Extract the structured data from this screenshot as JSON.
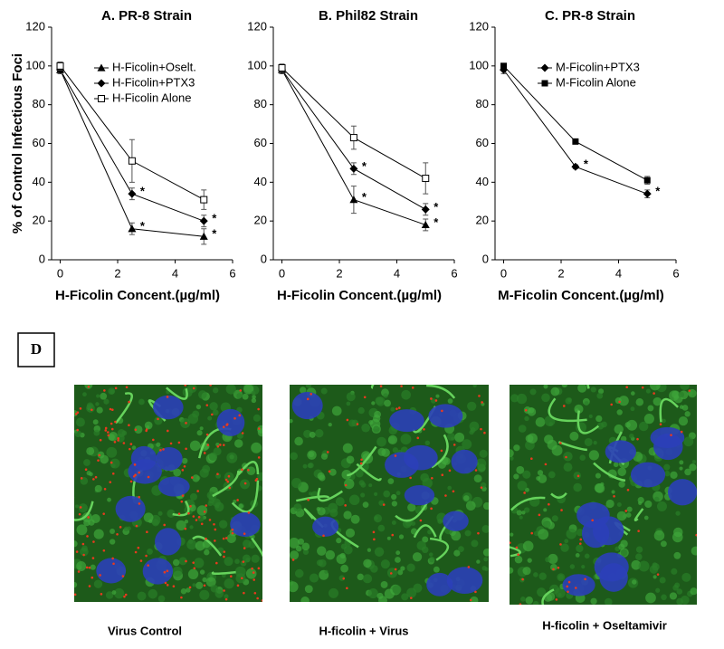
{
  "chart_data": [
    {
      "type": "line",
      "title": "A. PR-8 Strain",
      "xlabel": "H-Ficolin Concent.(µg/ml)",
      "ylabel": "% of Control Infectious Foci",
      "x": [
        0,
        2.5,
        5
      ],
      "xlim": [
        -0.3,
        6
      ],
      "xticks": [
        0,
        2,
        4,
        6
      ],
      "ylim": [
        0,
        120
      ],
      "yticks": [
        0,
        20,
        40,
        60,
        80,
        100,
        120
      ],
      "legend": "upper right",
      "series": [
        {
          "name": "H-Ficolin+Oselt.",
          "color": "#000000",
          "marker": "triangle",
          "values": [
            98,
            16,
            12
          ],
          "errors": [
            2,
            3,
            4
          ],
          "flags": [
            null,
            "*",
            "*"
          ]
        },
        {
          "name": "H-Ficolin+PTX3",
          "color": "#000000",
          "marker": "diamond",
          "values": [
            98,
            34,
            20
          ],
          "errors": [
            2,
            3,
            3
          ],
          "flags": [
            null,
            "*",
            "*"
          ]
        },
        {
          "name": "H-Ficolin Alone",
          "color": "#000000",
          "marker": "square-open",
          "values": [
            100,
            51,
            31
          ],
          "errors": [
            2,
            11,
            5
          ]
        }
      ]
    },
    {
      "type": "line",
      "title": "B. Phil82 Strain",
      "xlabel": "H-Ficolin Concent.(µg/ml)",
      "x": [
        0,
        2.5,
        5
      ],
      "xlim": [
        -0.3,
        6
      ],
      "xticks": [
        0,
        2,
        4,
        6
      ],
      "ylim": [
        0,
        120
      ],
      "yticks": [
        0,
        20,
        40,
        60,
        80,
        100,
        120
      ],
      "series": [
        {
          "color": "#000000",
          "marker": "triangle",
          "values": [
            98,
            31,
            18
          ],
          "errors": [
            2,
            7,
            3
          ],
          "flags": [
            null,
            "*",
            "*"
          ]
        },
        {
          "color": "#000000",
          "marker": "diamond",
          "values": [
            98,
            47,
            26
          ],
          "errors": [
            2,
            3,
            3
          ],
          "flags": [
            null,
            "*",
            "*"
          ]
        },
        {
          "color": "#000000",
          "marker": "square-open",
          "values": [
            99,
            63,
            42
          ],
          "errors": [
            2,
            6,
            8
          ]
        }
      ]
    },
    {
      "type": "line",
      "title": "C. PR-8 Strain",
      "xlabel": "M-Ficolin Concent.(µg/ml)",
      "x": [
        0,
        2.5,
        5
      ],
      "xlim": [
        -0.3,
        6
      ],
      "xticks": [
        0,
        2,
        4,
        6
      ],
      "ylim": [
        0,
        120
      ],
      "yticks": [
        0,
        20,
        40,
        60,
        80,
        100,
        120
      ],
      "legend": "upper right",
      "series": [
        {
          "name": "M-Ficolin+PTX3",
          "color": "#000000",
          "marker": "diamond",
          "values": [
            98,
            48,
            34
          ],
          "errors": [
            2,
            1,
            2
          ],
          "flags": [
            null,
            "*",
            "*"
          ]
        },
        {
          "name": "M-Ficolin Alone",
          "color": "#000000",
          "marker": "square",
          "values": [
            100,
            61,
            41
          ],
          "errors": [
            1,
            1,
            2
          ]
        }
      ]
    }
  ],
  "panel_d": {
    "label": "D",
    "captions": [
      "Virus Control",
      "H-ficolin + Virus",
      "H-ficolin + Oseltamivir"
    ]
  }
}
